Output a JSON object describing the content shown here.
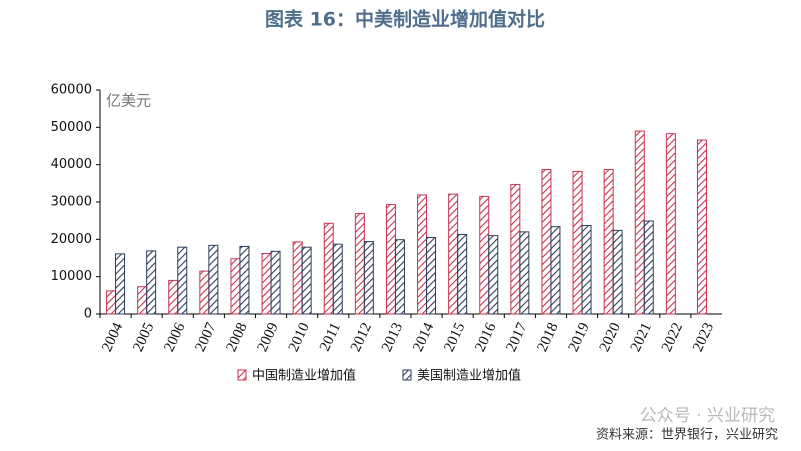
{
  "chart_data": {
    "type": "bar",
    "title": "图表 16：中美制造业增加值对比",
    "unit_label": "亿美元",
    "source": "资料来源：世界银行，兴业研究",
    "watermark": "公众号 · 兴业研究",
    "categories": [
      "2004",
      "2005",
      "2006",
      "2007",
      "2008",
      "2009",
      "2010",
      "2011",
      "2012",
      "2013",
      "2014",
      "2015",
      "2016",
      "2017",
      "2018",
      "2019",
      "2020",
      "2021",
      "2022",
      "2023"
    ],
    "series": [
      {
        "name": "中国制造业增加值",
        "color": "#c8324e",
        "values": [
          6200,
          7300,
          9000,
          11500,
          14800,
          16200,
          19300,
          24300,
          26900,
          29300,
          31900,
          32100,
          31500,
          34700,
          38700,
          38200,
          38700,
          49000,
          48300,
          46600
        ]
      },
      {
        "name": "美国制造业增加值",
        "color": "#2e3d5a",
        "values": [
          16100,
          16900,
          17900,
          18400,
          18100,
          16800,
          17900,
          18700,
          19400,
          19900,
          20500,
          21300,
          21000,
          22000,
          23400,
          23700,
          22400,
          24900,
          null,
          null
        ]
      }
    ],
    "ylim": [
      0,
      60000
    ],
    "yticks": [
      0,
      10000,
      20000,
      30000,
      40000,
      50000,
      60000
    ],
    "hatched": true,
    "legend": "bottom"
  }
}
